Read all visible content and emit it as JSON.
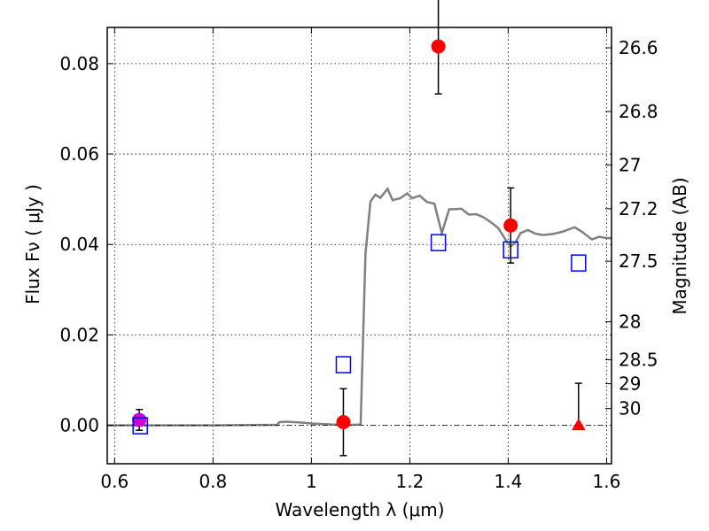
{
  "chart_data": {
    "type": "scatter",
    "title": "",
    "xlabel": "Wavelength  λ (μm)",
    "ylabel": "Flux  Fν  ( μJy )",
    "y2label": "Magnitude (AB)",
    "xlim": [
      0.585,
      1.61
    ],
    "ylim": [
      -0.0085,
      0.088
    ],
    "grid": true,
    "x_ticks": [
      {
        "value": 0.6,
        "label": "0.6"
      },
      {
        "value": 0.8,
        "label": "0.8"
      },
      {
        "value": 1.0,
        "label": "1"
      },
      {
        "value": 1.2,
        "label": "1.2"
      },
      {
        "value": 1.4,
        "label": "1.4"
      },
      {
        "value": 1.6,
        "label": "1.6"
      }
    ],
    "y_ticks": [
      {
        "value": 0.0,
        "label": "0.00"
      },
      {
        "value": 0.02,
        "label": "0.02"
      },
      {
        "value": 0.04,
        "label": "0.04"
      },
      {
        "value": 0.06,
        "label": "0.06"
      },
      {
        "value": 0.08,
        "label": "0.08"
      }
    ],
    "y2_ticks": [
      {
        "flux": 0.0835,
        "label": "26.6"
      },
      {
        "flux": 0.0694,
        "label": "26.8"
      },
      {
        "flux": 0.0576,
        "label": "27"
      },
      {
        "flux": 0.0479,
        "label": "27.2"
      },
      {
        "flux": 0.0363,
        "label": "27.5"
      },
      {
        "flux": 0.0229,
        "label": "28"
      },
      {
        "flux": 0.0145,
        "label": "28.5"
      },
      {
        "flux": 0.0092,
        "label": "29"
      },
      {
        "flux": 0.0037,
        "label": "30"
      }
    ],
    "series": [
      {
        "kind": "line",
        "color": "#808080",
        "points": [
          [
            0.585,
            0.0
          ],
          [
            0.7,
            0.0
          ],
          [
            0.8,
            0.0
          ],
          [
            0.9,
            0.0001
          ],
          [
            0.93,
            0.0001
          ],
          [
            0.935,
            0.0007
          ],
          [
            0.95,
            0.0008
          ],
          [
            0.98,
            0.0006
          ],
          [
            1.0,
            0.0004
          ],
          [
            1.04,
            0.0002
          ],
          [
            1.08,
            0.0001
          ],
          [
            1.1,
            0.0002
          ],
          [
            1.11,
            0.038
          ],
          [
            1.12,
            0.0495
          ],
          [
            1.13,
            0.051
          ],
          [
            1.14,
            0.0503
          ],
          [
            1.155,
            0.0523
          ],
          [
            1.165,
            0.0498
          ],
          [
            1.18,
            0.0502
          ],
          [
            1.195,
            0.0513
          ],
          [
            1.205,
            0.0502
          ],
          [
            1.22,
            0.0508
          ],
          [
            1.235,
            0.0494
          ],
          [
            1.25,
            0.049
          ],
          [
            1.265,
            0.0425
          ],
          [
            1.28,
            0.0478
          ],
          [
            1.29,
            0.0478
          ],
          [
            1.305,
            0.0479
          ],
          [
            1.32,
            0.0466
          ],
          [
            1.335,
            0.0467
          ],
          [
            1.35,
            0.046
          ],
          [
            1.365,
            0.0449
          ],
          [
            1.38,
            0.0436
          ],
          [
            1.395,
            0.041
          ],
          [
            1.405,
            0.0396
          ],
          [
            1.415,
            0.0405
          ],
          [
            1.425,
            0.0425
          ],
          [
            1.44,
            0.0432
          ],
          [
            1.455,
            0.0424
          ],
          [
            1.47,
            0.0421
          ],
          [
            1.49,
            0.0423
          ],
          [
            1.51,
            0.0428
          ],
          [
            1.535,
            0.0438
          ],
          [
            1.55,
            0.0428
          ],
          [
            1.57,
            0.0411
          ],
          [
            1.585,
            0.0417
          ],
          [
            1.6,
            0.0414
          ],
          [
            1.61,
            0.0414
          ]
        ]
      },
      {
        "kind": "dashdot",
        "color": "#000000",
        "points": [
          [
            0.585,
            0.0
          ],
          [
            1.61,
            0.0
          ]
        ]
      },
      {
        "kind": "circle",
        "color": "#ff0000",
        "points": [
          {
            "x": 1.065,
            "y": 0.0007,
            "err": 0.0074
          },
          {
            "x": 1.258,
            "y": 0.0838,
            "err": 0.0105
          },
          {
            "x": 1.405,
            "y": 0.0442,
            "err": 0.0083
          }
        ]
      },
      {
        "kind": "circle",
        "color": "#cc00cc",
        "points": [
          {
            "x": 0.65,
            "y": 0.0012,
            "err": 0.0023
          }
        ]
      },
      {
        "kind": "triangle",
        "color": "#ff0000",
        "points": [
          {
            "x": 1.543,
            "y": 0.0,
            "err_up": 0.0093
          }
        ]
      },
      {
        "kind": "square",
        "color": "#0000ff",
        "points": [
          {
            "x": 0.652,
            "y": -0.0001
          },
          {
            "x": 1.065,
            "y": 0.0134
          },
          {
            "x": 1.258,
            "y": 0.0404
          },
          {
            "x": 1.405,
            "y": 0.0388
          },
          {
            "x": 1.543,
            "y": 0.0359
          }
        ]
      }
    ]
  }
}
